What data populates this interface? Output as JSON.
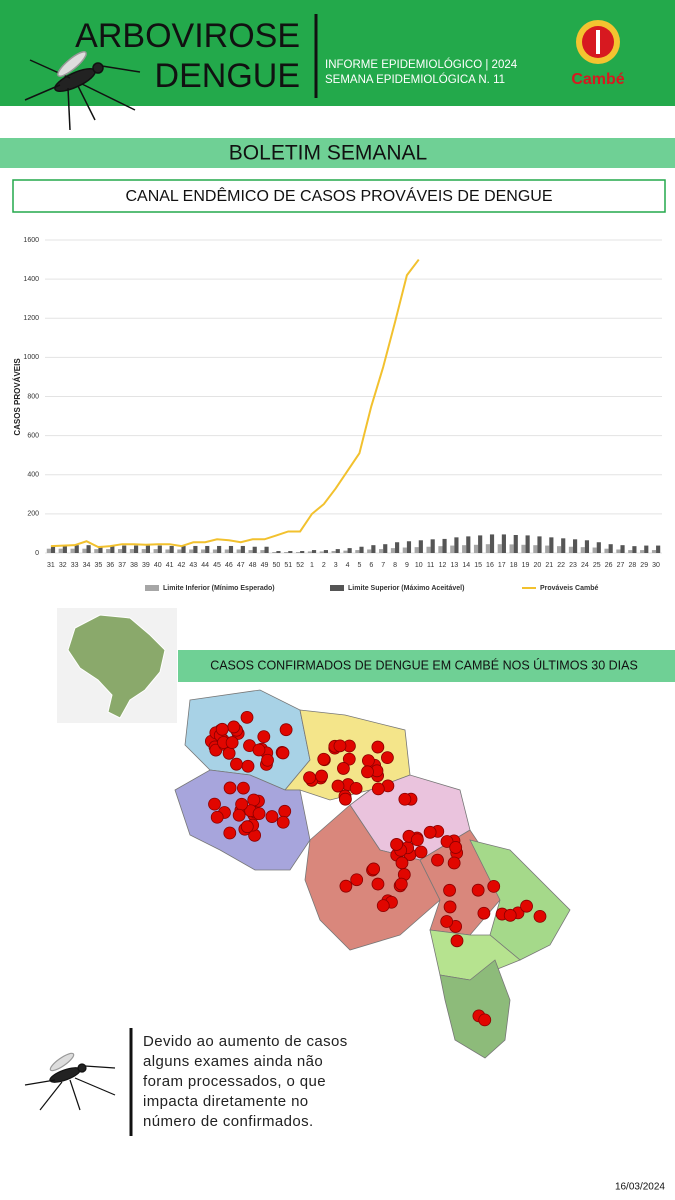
{
  "header": {
    "title_line1": "ARBOVIROSE",
    "title_line2": "DENGUE",
    "info_line1": "INFORME EPIDEMIOLÓGICO | 2024",
    "info_line2": "SEMANA EPIDEMIOLÓGICA  N. 11",
    "logo": "Cambé"
  },
  "banner": "BOLETIM SEMANAL",
  "chart_data": {
    "type": "bar_line",
    "title": "CANAL ENDÊMICO DE CASOS PROVÁVEIS DE DENGUE",
    "y_label": "CASOS PROVÁVEIS",
    "categories": [
      "31",
      "32",
      "33",
      "34",
      "35",
      "36",
      "37",
      "38",
      "39",
      "40",
      "41",
      "42",
      "43",
      "44",
      "45",
      "46",
      "47",
      "48",
      "49",
      "50",
      "51",
      "52",
      "1",
      "2",
      "3",
      "4",
      "5",
      "6",
      "7",
      "8",
      "9",
      "10",
      "11",
      "12",
      "13",
      "14",
      "15",
      "16",
      "17",
      "18",
      "19",
      "20",
      "21",
      "22",
      "23",
      "24",
      "25",
      "26",
      "27",
      "28",
      "29",
      "30"
    ],
    "series": [
      {
        "name": "Limite Inferior (Mínimo Esperado)",
        "kind": "bar",
        "color": "#a6a6a6",
        "values": [
          22,
          22,
          22,
          22,
          20,
          20,
          20,
          20,
          20,
          20,
          18,
          18,
          18,
          18,
          18,
          18,
          18,
          15,
          15,
          5,
          5,
          5,
          8,
          8,
          10,
          12,
          15,
          18,
          20,
          25,
          28,
          30,
          32,
          35,
          38,
          40,
          42,
          45,
          45,
          44,
          42,
          40,
          38,
          35,
          32,
          30,
          28,
          22,
          18,
          15,
          15,
          15
        ]
      },
      {
        "name": "Limite Superior (Máximo Aceitável)",
        "kind": "bar",
        "color": "#555555",
        "values": [
          38,
          40,
          40,
          40,
          36,
          38,
          38,
          38,
          38,
          38,
          36,
          36,
          36,
          36,
          36,
          36,
          36,
          32,
          32,
          10,
          10,
          10,
          15,
          15,
          20,
          25,
          32,
          40,
          45,
          55,
          60,
          65,
          70,
          72,
          80,
          85,
          90,
          95,
          95,
          92,
          90,
          85,
          80,
          75,
          70,
          65,
          55,
          45,
          40,
          35,
          38,
          38
        ]
      },
      {
        "name": "Prováveis Cambé",
        "kind": "line",
        "color": "#f2c12e",
        "values": [
          35,
          38,
          40,
          60,
          30,
          35,
          45,
          45,
          42,
          45,
          45,
          35,
          55,
          55,
          70,
          65,
          55,
          70,
          70,
          90,
          110,
          110,
          200,
          250,
          330,
          420,
          510,
          750,
          950,
          1180,
          1420,
          1500,
          null,
          null,
          null,
          null,
          null,
          null,
          null,
          null,
          null,
          null,
          null,
          null,
          null,
          null,
          null,
          null,
          null,
          null,
          null,
          null
        ]
      }
    ],
    "ylim": [
      0,
      1600
    ],
    "yticks": [
      0,
      200,
      400,
      600,
      800,
      1000,
      1200,
      1400,
      1600
    ],
    "grid": true
  },
  "map_title": "CASOS CONFIRMADOS DE DENGUE EM CAMBÉ NOS ÚLTIMOS 30 DIAS",
  "note": [
    "Devido ao aumento de casos",
    "alguns exames ainda não",
    "foram processados, o que",
    "impacta diretamente no",
    "número de confirmados."
  ],
  "date": "16/03/2024"
}
